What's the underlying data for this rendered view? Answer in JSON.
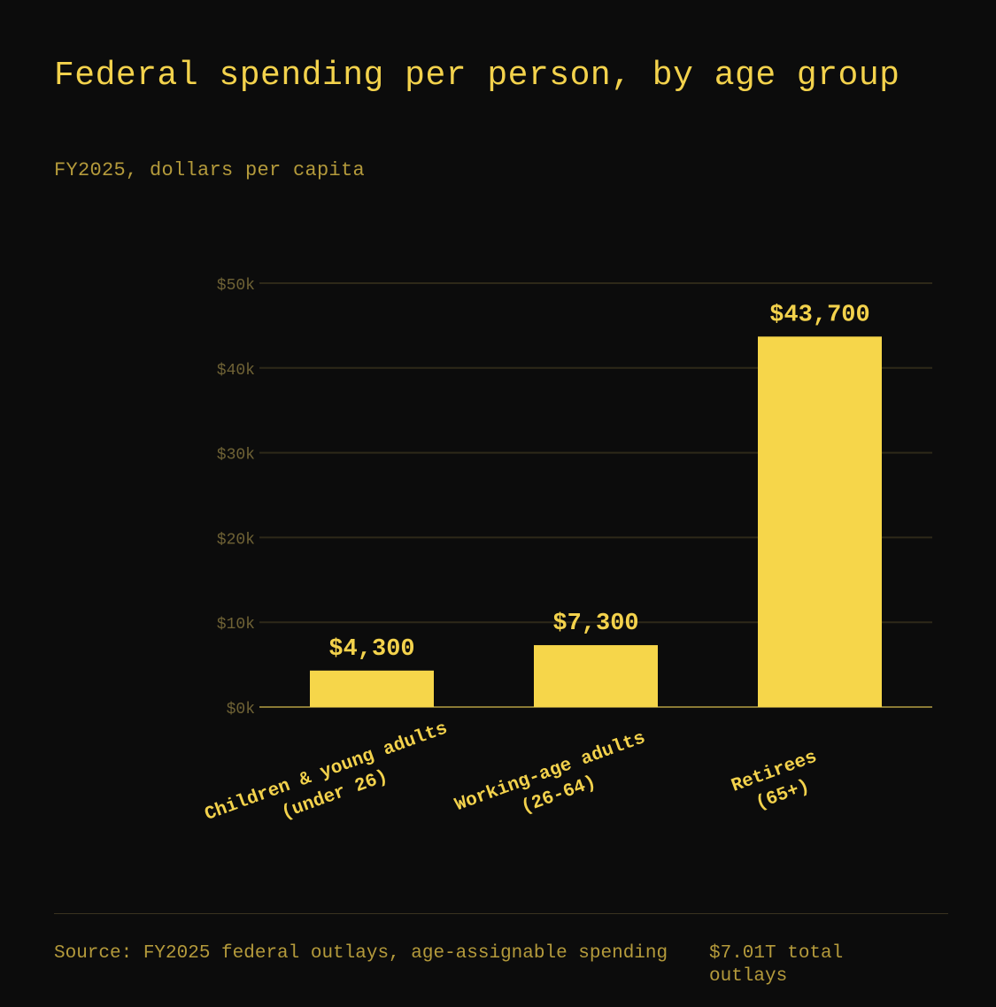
{
  "header": {
    "title": "Federal spending per person, by age group",
    "subtitle": "FY2025, dollars per capita"
  },
  "footer": {
    "source": "Source: FY2025 federal outlays, age-assignable spending",
    "total": "$7.01T total outlays"
  },
  "colors": {
    "background": "#0c0c0c",
    "bar": "#f6d64a",
    "text": "#f3d24c",
    "muted_text": "#b49a3b",
    "tick_text": "#6f6235",
    "grid": "#2e2919",
    "axis": "#8a7a35"
  },
  "chart_data": {
    "type": "bar",
    "title": "Federal spending per person, by age group",
    "subtitle": "FY2025, dollars per capita",
    "xlabel": "",
    "ylabel": "",
    "categories": [
      [
        "Children & young adults",
        "(under 26)"
      ],
      [
        "Working-age adults",
        "(26-64)"
      ],
      [
        "Retirees",
        "(65+)"
      ]
    ],
    "values": [
      4300,
      7300,
      43700
    ],
    "value_labels": [
      "$4,300",
      "$7,300",
      "$43,700"
    ],
    "ylim": [
      0,
      50000
    ],
    "yticks": [
      0,
      10000,
      20000,
      30000,
      40000,
      50000
    ],
    "ytick_labels": [
      "$0k",
      "$10k",
      "$20k",
      "$30k",
      "$40k",
      "$50k"
    ],
    "grid": true,
    "legend": "none"
  }
}
